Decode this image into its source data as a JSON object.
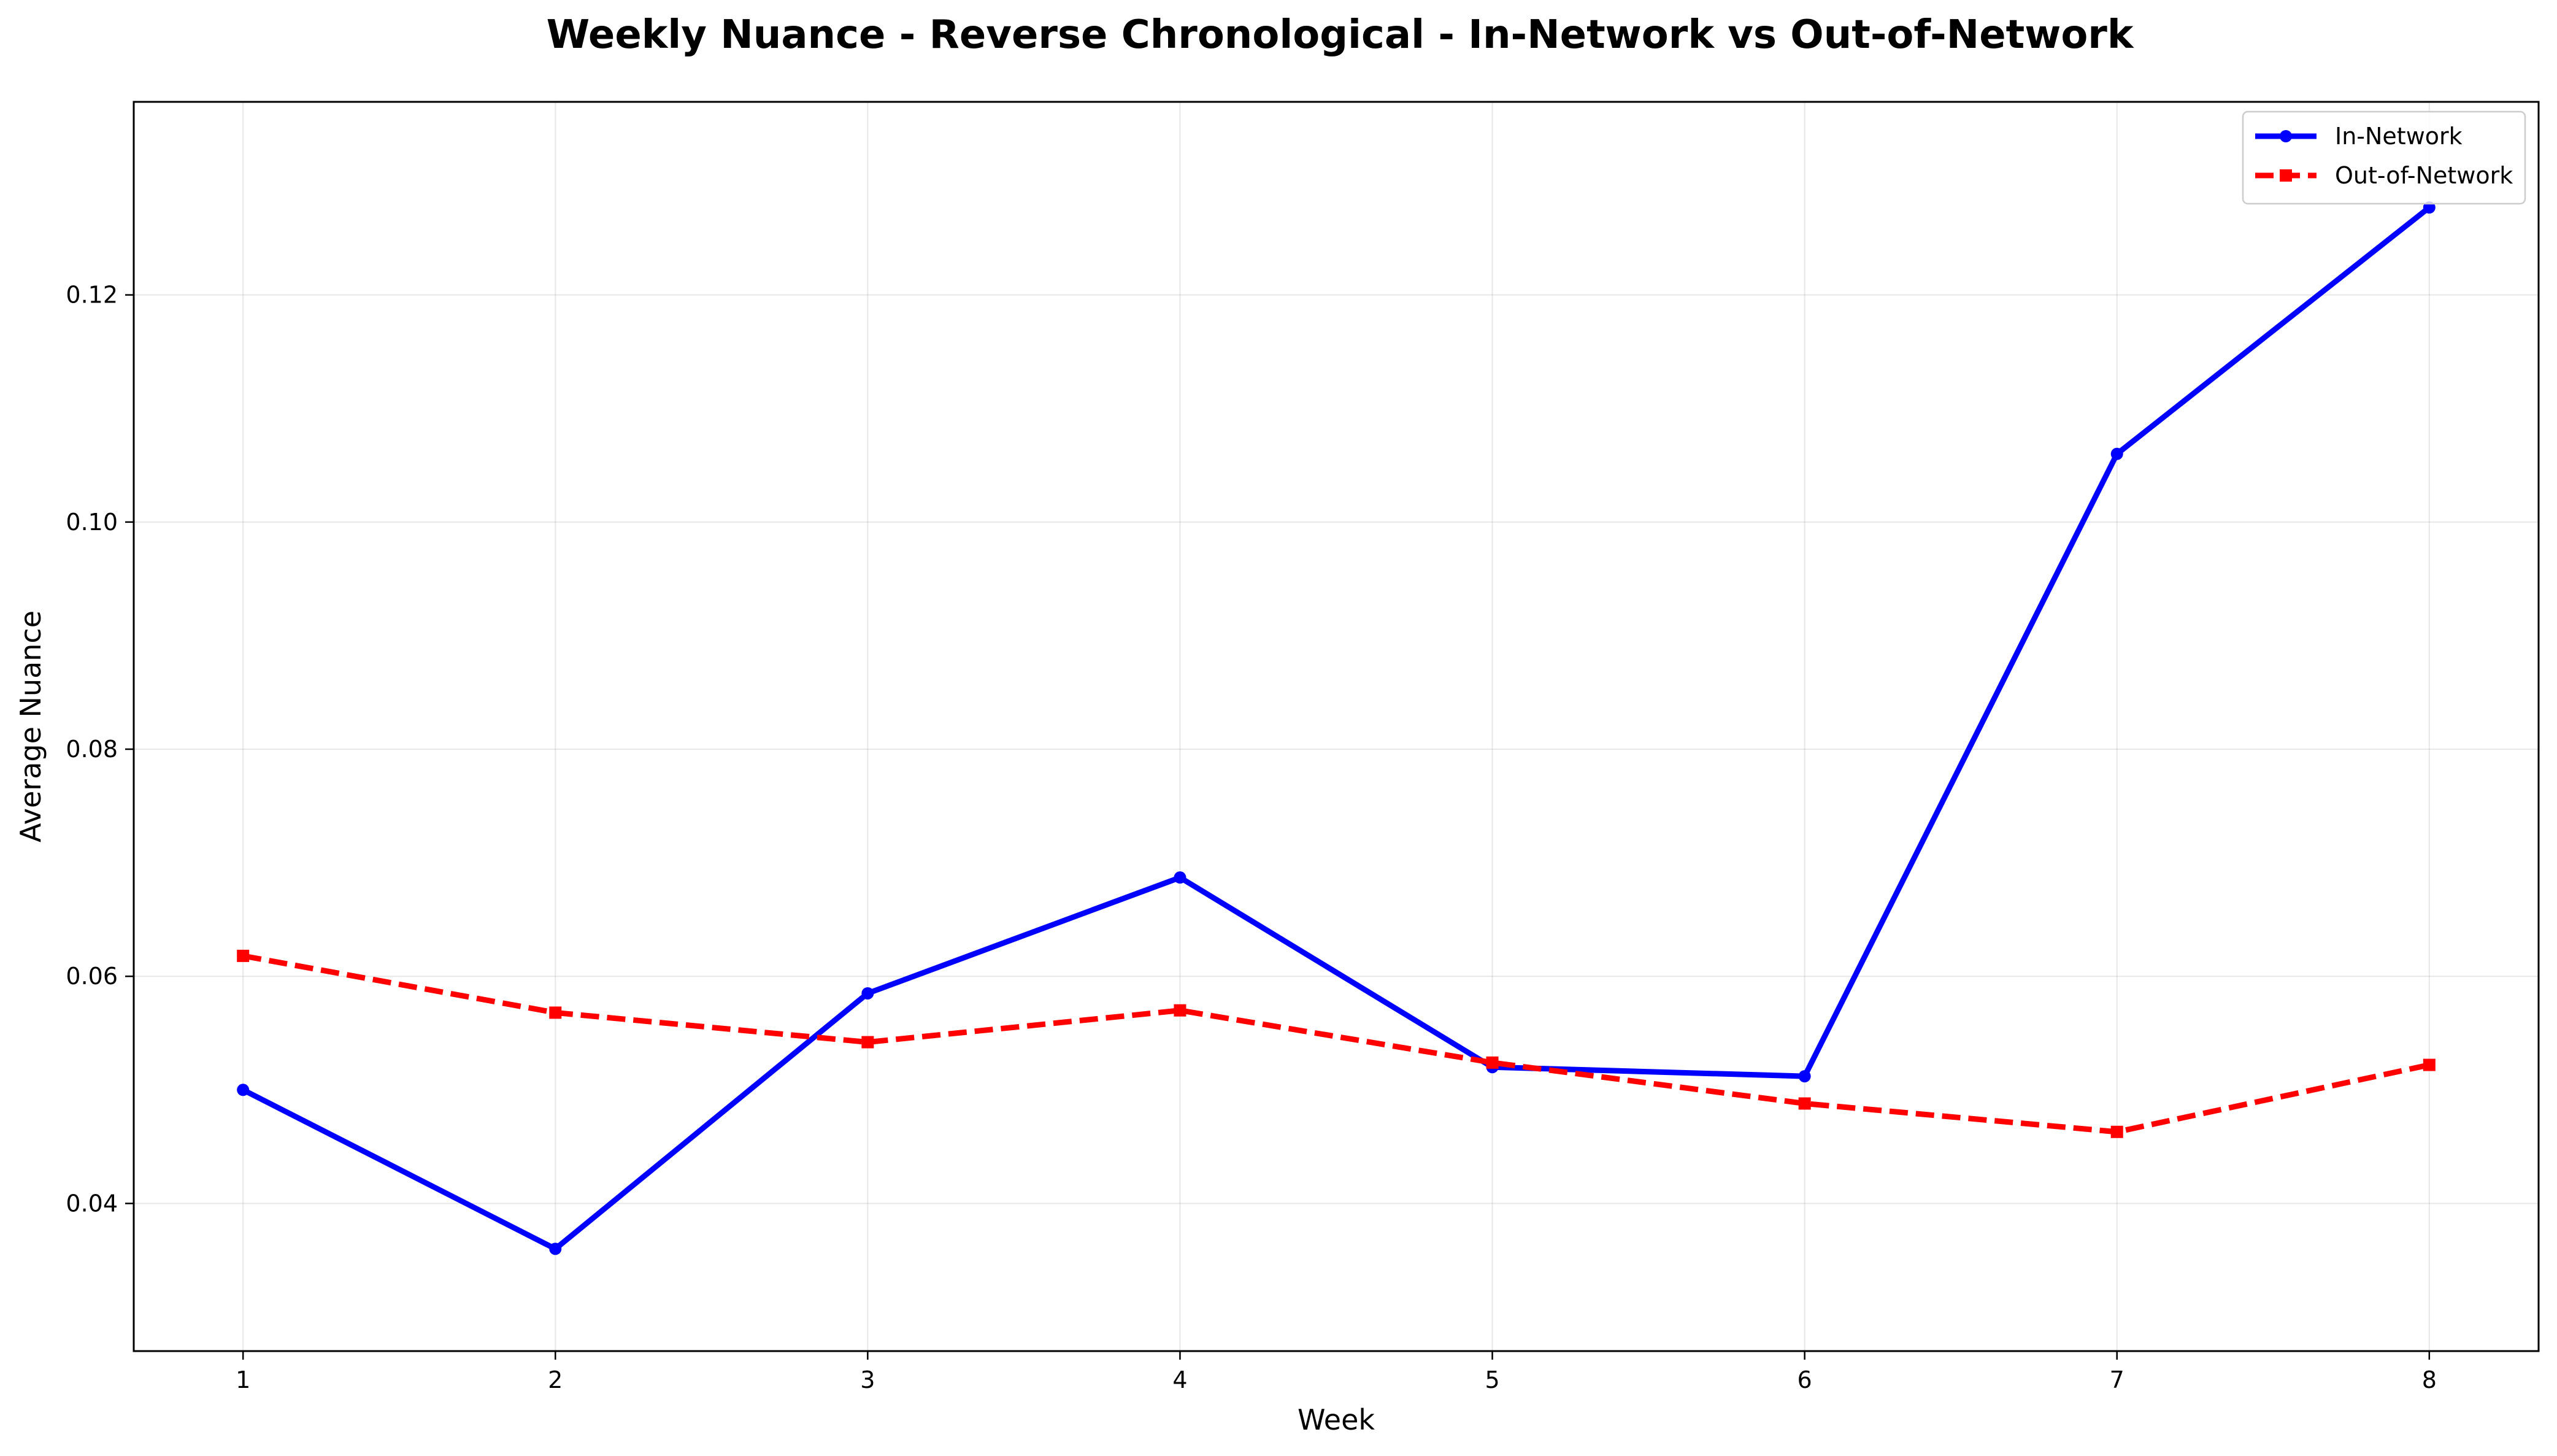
{
  "chart_data": {
    "type": "line",
    "title": "Weekly Nuance - Reverse Chronological - In-Network vs Out-of-Network",
    "xlabel": "Week",
    "ylabel": "Average Nuance",
    "x": [
      1,
      2,
      3,
      4,
      5,
      6,
      7,
      8
    ],
    "xlim": [
      0.65,
      8.35
    ],
    "ylim": [
      0.027,
      0.137
    ],
    "x_ticks": [
      1,
      2,
      3,
      4,
      5,
      6,
      7,
      8
    ],
    "x_tick_labels": [
      "1",
      "2",
      "3",
      "4",
      "5",
      "6",
      "7",
      "8"
    ],
    "y_ticks": [
      0.04,
      0.06,
      0.08,
      0.1,
      0.12
    ],
    "y_tick_labels": [
      "0.04",
      "0.06",
      "0.08",
      "0.10",
      "0.12"
    ],
    "grid": true,
    "legend_position": "top-right",
    "series": [
      {
        "name": "In-Network",
        "color": "#0000ff",
        "line_style": "solid",
        "marker": "circle",
        "values": [
          0.05,
          0.036,
          0.0585,
          0.0687,
          0.052,
          0.0512,
          0.106,
          0.1277
        ]
      },
      {
        "name": "Out-of-Network",
        "color": "#ff0000",
        "line_style": "dashed",
        "marker": "square",
        "values": [
          0.0618,
          0.0568,
          0.0542,
          0.057,
          0.0524,
          0.0488,
          0.0463,
          0.0522
        ]
      }
    ]
  }
}
